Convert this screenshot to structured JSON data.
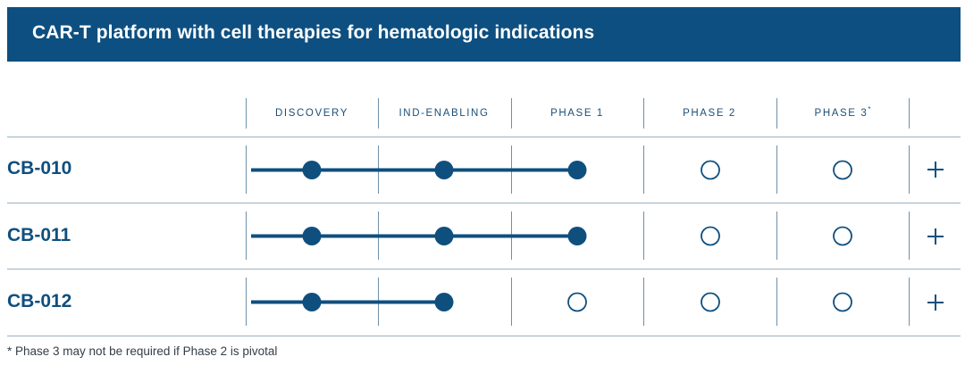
{
  "header": {
    "title": "CAR-T platform with cell therapies for hematologic indications"
  },
  "columns": [
    {
      "label": "DISCOVERY",
      "mark": ""
    },
    {
      "label": "IND-ENABLING",
      "mark": ""
    },
    {
      "label": "PHASE 1",
      "mark": ""
    },
    {
      "label": "PHASE 2",
      "mark": ""
    },
    {
      "label": "PHASE 3",
      "mark": "*"
    }
  ],
  "rows": [
    {
      "name": "CB-010",
      "stages_completed": 3
    },
    {
      "name": "CB-011",
      "stages_completed": 3
    },
    {
      "name": "CB-012",
      "stages_completed": 2
    }
  ],
  "footnote": "* Phase 3 may not be required if Phase 2 is pivotal",
  "colors": {
    "banner": "#0d4f80",
    "accent": "#0f4f7e",
    "text": "#333d48"
  }
}
